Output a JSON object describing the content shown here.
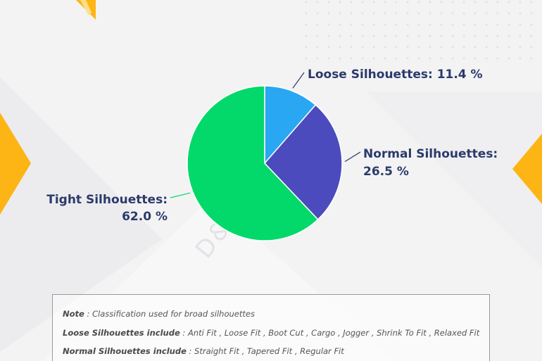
{
  "colors": {
    "background": "#f3f3f4",
    "accent": "#fdb515",
    "label_text": "#2b3a6b",
    "leader_line": "#2b3a6b"
  },
  "watermark": "D&J Reports",
  "chart_data": {
    "type": "pie",
    "title": "",
    "start_angle_deg": 0,
    "direction": "clockwise",
    "slices": [
      {
        "label": "Loose Silhouettes",
        "value": 11.4,
        "display": "11.4 %",
        "color": "#2aa7f2"
      },
      {
        "label": "Normal Silhouettes",
        "value": 26.5,
        "display": "26.5 %",
        "color": "#4b4bbe"
      },
      {
        "label": "Tight Silhouettes",
        "value": 62.0,
        "display": "62.0 %",
        "color": "#02d96a"
      }
    ]
  },
  "note": {
    "lines": [
      {
        "bold": "Note",
        "text": " : Classification used for broad silhouettes"
      },
      {
        "bold": "Loose Silhouettes include",
        "text": " : Anti Fit , Loose Fit , Boot Cut , Cargo , Jogger , Shrink To Fit , Relaxed Fit"
      },
      {
        "bold": "Normal Silhouettes include",
        "text": " : Straight Fit , Tapered Fit , Regular Fit"
      }
    ]
  }
}
